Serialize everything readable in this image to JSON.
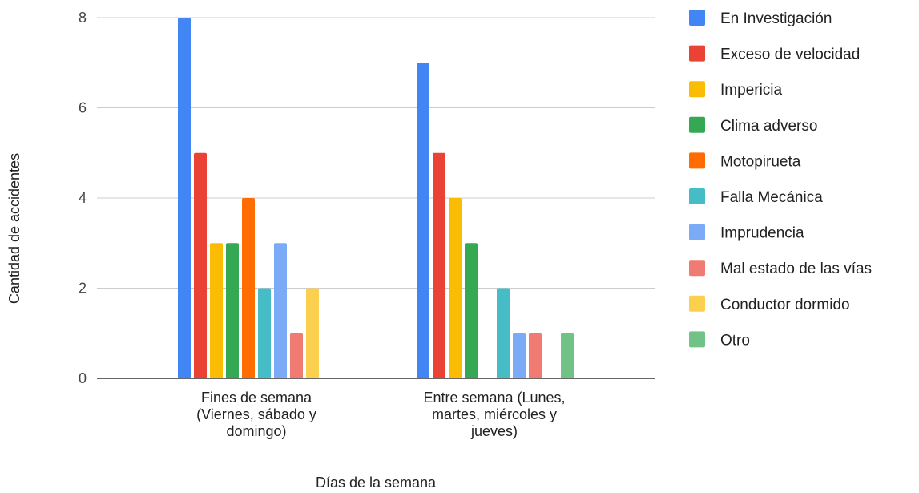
{
  "chart_data": {
    "type": "bar",
    "title": "",
    "xlabel": "Días de la semana",
    "ylabel": "Cantidad de accidentes",
    "ylim": [
      0,
      8
    ],
    "yticks": [
      "0",
      "2",
      "4",
      "6",
      "8"
    ],
    "grid": true,
    "legend_position": "right",
    "categories": [
      [
        "Fines de semana",
        "(Viernes, sábado y",
        "domingo)"
      ],
      [
        "Entre semana (Lunes,",
        "martes, miércoles y",
        "jueves)"
      ]
    ],
    "series": [
      {
        "name": "En Investigación",
        "color": "#4285f4",
        "values": [
          8,
          7
        ]
      },
      {
        "name": "Exceso de velocidad",
        "color": "#ea4335",
        "values": [
          5,
          5
        ]
      },
      {
        "name": "Impericia",
        "color": "#fbbc04",
        "values": [
          3,
          4
        ]
      },
      {
        "name": "Clima adverso",
        "color": "#34a853",
        "values": [
          3,
          3
        ]
      },
      {
        "name": "Motopirueta",
        "color": "#ff6d01",
        "values": [
          4,
          0
        ]
      },
      {
        "name": "Falla Mecánica",
        "color": "#46bdc6",
        "values": [
          2,
          2
        ]
      },
      {
        "name": "Imprudencia",
        "color": "#7baaf7",
        "values": [
          3,
          1
        ]
      },
      {
        "name": "Mal estado de las vías",
        "color": "#f07b72",
        "values": [
          1,
          1
        ]
      },
      {
        "name": "Conductor dormido",
        "color": "#fcd04f",
        "values": [
          2,
          0
        ]
      },
      {
        "name": "Otro",
        "color": "#71c287",
        "values": [
          0,
          1
        ]
      }
    ]
  }
}
